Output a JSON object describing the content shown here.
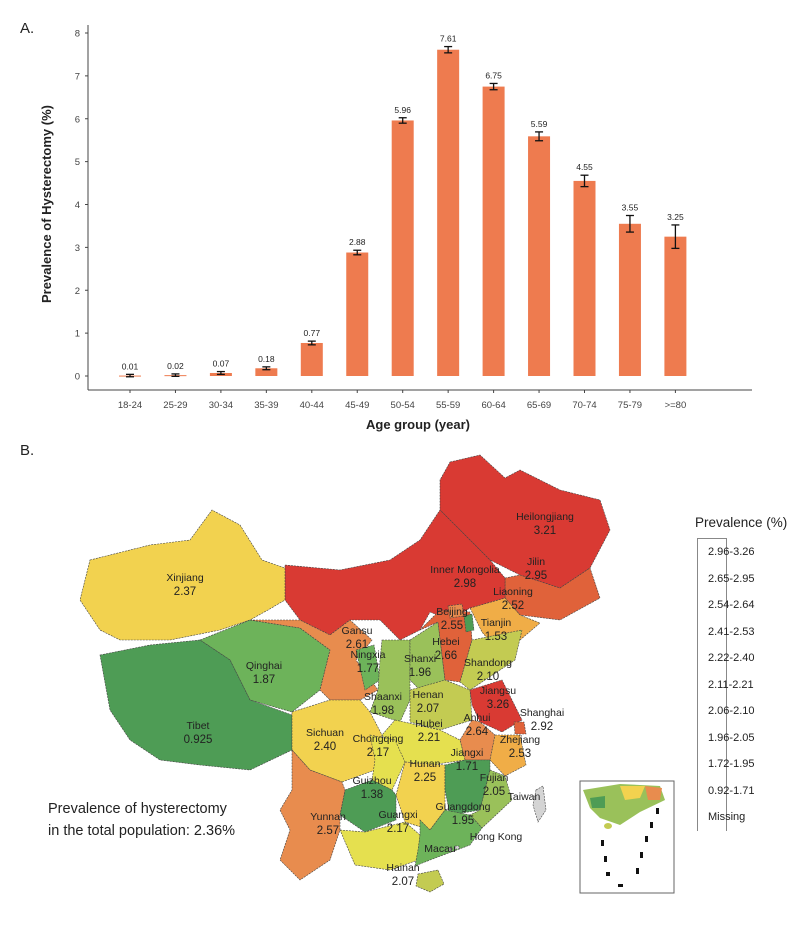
{
  "panels": {
    "a": "A.",
    "b": "B."
  },
  "chart_data": {
    "type": "bar",
    "title": "",
    "xlabel": "Age group (year)",
    "ylabel": "Prevalence of Hysterectomy (%)",
    "ylim": [
      0,
      8
    ],
    "yticks": [
      0,
      1,
      2,
      3,
      4,
      5,
      6,
      7,
      8
    ],
    "grid": false,
    "bar_color": "#ee7b4f",
    "categories": [
      "18-24",
      "25-29",
      "30-34",
      "35-39",
      "40-44",
      "45-49",
      "50-54",
      "55-59",
      "60-64",
      "65-69",
      "70-74",
      "75-79",
      ">=80"
    ],
    "values": [
      0.01,
      0.02,
      0.07,
      0.18,
      0.77,
      2.88,
      5.96,
      7.61,
      6.75,
      5.59,
      4.55,
      3.55,
      3.25
    ],
    "data_labels": [
      "0.01",
      "0.02",
      "0.07",
      "0.18",
      "0.77",
      "2.88",
      "5.96",
      "7.61",
      "6.75",
      "5.59",
      "4.55",
      "3.55",
      "3.25"
    ],
    "error": [
      0.005,
      0.005,
      0.01,
      0.01,
      0.02,
      0.03,
      0.04,
      0.05,
      0.05,
      0.08,
      0.11,
      0.17,
      0.25
    ]
  },
  "map": {
    "legend_title": "Prevalence (%)",
    "legend": [
      {
        "label": "2.96-3.26",
        "color": "#d93a33"
      },
      {
        "label": "2.65-2.95",
        "color": "#e0623a"
      },
      {
        "label": "2.54-2.64",
        "color": "#e88c4e"
      },
      {
        "label": "2.41-2.53",
        "color": "#f0ad47"
      },
      {
        "label": "2.22-2.40",
        "color": "#f2d24f"
      },
      {
        "label": "2.11-2.21",
        "color": "#e5e04f"
      },
      {
        "label": "2.06-2.10",
        "color": "#c3cb52"
      },
      {
        "label": "1.96-2.05",
        "color": "#9ac15a"
      },
      {
        "label": "1.72-1.95",
        "color": "#6db35a"
      },
      {
        "label": "0.92-1.71",
        "color": "#4e9c55"
      },
      {
        "label": "Missing",
        "color": "#d4d4d4"
      }
    ],
    "total_line1": "Prevalence of hysterectomy",
    "total_line2": "in the total population: 2.36%",
    "regions": [
      {
        "name": "Heilongjiang",
        "value": "3.21"
      },
      {
        "name": "Jilin",
        "value": "2.95"
      },
      {
        "name": "Liaoning",
        "value": "2.52"
      },
      {
        "name": "Inner Mongolia",
        "value": "2.98"
      },
      {
        "name": "Xinjiang",
        "value": "2.37"
      },
      {
        "name": "Qinghai",
        "value": "1.87"
      },
      {
        "name": "Tibet",
        "value": "0.925"
      },
      {
        "name": "Gansu",
        "value": "2.61"
      },
      {
        "name": "Ningxia",
        "value": "1.77"
      },
      {
        "name": "Shaanxi",
        "value": "1.98"
      },
      {
        "name": "Shanxi",
        "value": "1.96"
      },
      {
        "name": "Hebei",
        "value": "2.66"
      },
      {
        "name": "Beijing",
        "value": "2.55"
      },
      {
        "name": "Tianjin",
        "value": "1.53"
      },
      {
        "name": "Shandong",
        "value": "2.10"
      },
      {
        "name": "Henan",
        "value": "2.07"
      },
      {
        "name": "Jiangsu",
        "value": "3.26"
      },
      {
        "name": "Shanghai",
        "value": "2.92"
      },
      {
        "name": "Anhui",
        "value": "2.64"
      },
      {
        "name": "Zhejiang",
        "value": "2.53"
      },
      {
        "name": "Hubei",
        "value": "2.21"
      },
      {
        "name": "Sichuan",
        "value": "2.40"
      },
      {
        "name": "Chongqing",
        "value": "2.17"
      },
      {
        "name": "Hunan",
        "value": "2.25"
      },
      {
        "name": "Jiangxi",
        "value": "1.71"
      },
      {
        "name": "Fujian",
        "value": "2.05"
      },
      {
        "name": "Guizhou",
        "value": "1.38"
      },
      {
        "name": "Yunnan",
        "value": "2.57"
      },
      {
        "name": "Guangxi",
        "value": "2.17"
      },
      {
        "name": "Guangdong",
        "value": "1.95"
      },
      {
        "name": "Hainan",
        "value": "2.07"
      },
      {
        "name": "Taiwan",
        "value": ""
      },
      {
        "name": "Hong Kong",
        "value": ""
      },
      {
        "name": "Macau",
        "value": ""
      }
    ]
  }
}
